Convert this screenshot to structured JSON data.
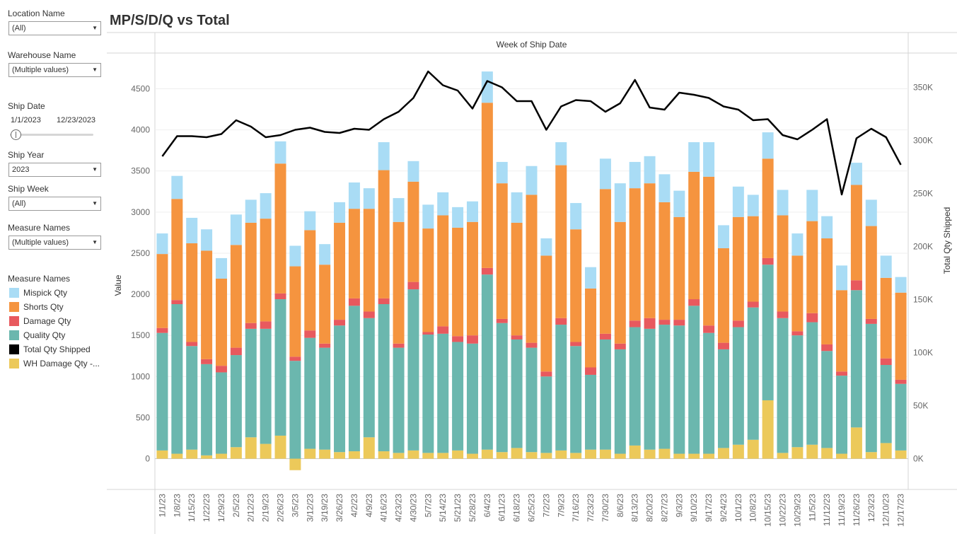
{
  "filters": {
    "location": {
      "label": "Location Name",
      "value": "(All)"
    },
    "warehouse": {
      "label": "Warehouse Name",
      "value": "(Multiple values)"
    },
    "ship_date": {
      "label": "Ship Date",
      "start": "1/1/2023",
      "end": "12/23/2023"
    },
    "ship_year": {
      "label": "Ship Year",
      "value": "2023"
    },
    "ship_week": {
      "label": "Ship Week",
      "value": "(All)"
    },
    "measure_names": {
      "label": "Measure Names",
      "value": "(Multiple values)"
    }
  },
  "legend": {
    "title": "Measure Names",
    "items": [
      {
        "label": "Mispick Qty",
        "color": "#a9dcf5"
      },
      {
        "label": "Shorts Qty",
        "color": "#f5943f"
      },
      {
        "label": "Damage Qty",
        "color": "#e8595e"
      },
      {
        "label": "Quality Qty",
        "color": "#6bb7ae"
      },
      {
        "label": "Total Qty Shipped",
        "color": "#000000"
      },
      {
        "label": "WH Damage Qty -...",
        "color": "#ecc95a"
      }
    ]
  },
  "chart_title": "MP/S/D/Q vs Total",
  "chart_data": {
    "type": "bar",
    "subtype": "stacked bar with line on secondary axis",
    "title": "MP/S/D/Q vs Total",
    "column_header": "Week of Ship Date",
    "ylabel": "Value",
    "y2label": "Total Qty Shipped",
    "ylim": [
      -150,
      4850
    ],
    "y2lim": [
      -30000,
      370000
    ],
    "yticks": [
      0,
      500,
      1000,
      1500,
      2000,
      2500,
      3000,
      3500,
      4000,
      4500
    ],
    "y2ticks": [
      "0K",
      "50K",
      "100K",
      "150K",
      "200K",
      "250K",
      "300K",
      "350K"
    ],
    "y2tick_values": [
      0,
      50000,
      100000,
      150000,
      200000,
      250000,
      300000,
      350000
    ],
    "grid": true,
    "categories": [
      "1/1/23",
      "1/8/23",
      "1/15/23",
      "1/22/23",
      "1/29/23",
      "2/5/23",
      "2/12/23",
      "2/19/23",
      "2/26/23",
      "3/5/23",
      "3/12/23",
      "3/19/23",
      "3/26/23",
      "4/2/23",
      "4/9/23",
      "4/16/23",
      "4/23/23",
      "4/30/23",
      "5/7/23",
      "5/14/23",
      "5/21/23",
      "5/28/23",
      "6/4/23",
      "6/11/23",
      "6/18/23",
      "6/25/23",
      "7/2/23",
      "7/9/23",
      "7/16/23",
      "7/23/23",
      "7/30/23",
      "8/6/23",
      "8/13/23",
      "8/20/23",
      "8/27/23",
      "9/3/23",
      "9/10/23",
      "9/17/23",
      "9/24/23",
      "10/1/23",
      "10/8/23",
      "10/15/23",
      "10/22/23",
      "10/29/23",
      "11/5/23",
      "11/12/23",
      "11/19/23",
      "11/26/23",
      "12/3/23",
      "12/10/23",
      "12/17/23"
    ],
    "series": [
      {
        "name": "WH Damage Qty -...",
        "color": "#ecc95a",
        "values": [
          100,
          60,
          110,
          40,
          60,
          140,
          260,
          180,
          280,
          -140,
          120,
          110,
          80,
          90,
          260,
          90,
          70,
          100,
          70,
          70,
          100,
          60,
          110,
          80,
          130,
          80,
          70,
          100,
          70,
          110,
          110,
          60,
          160,
          110,
          120,
          60,
          60,
          60,
          130,
          170,
          230,
          710,
          70,
          140,
          170,
          130,
          60,
          380,
          80,
          190,
          100
        ]
      },
      {
        "name": "Quality Qty",
        "color": "#6bb7ae",
        "values": [
          1430,
          1820,
          1260,
          1110,
          990,
          1120,
          1320,
          1400,
          1660,
          1190,
          1350,
          1240,
          1540,
          1770,
          1450,
          1790,
          1280,
          1960,
          1440,
          1450,
          1320,
          1340,
          2130,
          1570,
          1320,
          1270,
          930,
          1530,
          1300,
          910,
          1340,
          1270,
          1440,
          1470,
          1510,
          1560,
          1800,
          1470,
          1200,
          1430,
          1610,
          1650,
          1640,
          1360,
          1490,
          1180,
          950,
          1670,
          1560,
          950,
          810
        ]
      },
      {
        "name": "Damage Qty",
        "color": "#e8595e",
        "values": [
          60,
          50,
          50,
          60,
          80,
          90,
          70,
          90,
          70,
          50,
          90,
          50,
          70,
          90,
          80,
          70,
          50,
          90,
          30,
          90,
          70,
          100,
          80,
          50,
          50,
          60,
          60,
          80,
          50,
          90,
          70,
          70,
          80,
          130,
          60,
          70,
          80,
          90,
          80,
          80,
          70,
          80,
          80,
          50,
          110,
          80,
          50,
          120,
          60,
          80,
          50
        ]
      },
      {
        "name": "Shorts Qty",
        "color": "#f5943f",
        "values": [
          900,
          1230,
          1200,
          1320,
          1060,
          1250,
          1220,
          1250,
          1580,
          1100,
          1220,
          960,
          1180,
          1090,
          1250,
          1560,
          1480,
          1220,
          1260,
          1350,
          1320,
          1380,
          2010,
          1650,
          1370,
          1800,
          1410,
          1860,
          1370,
          960,
          1760,
          1480,
          1610,
          1640,
          1430,
          1250,
          1550,
          1810,
          1150,
          1260,
          1040,
          1210,
          1170,
          920,
          1120,
          1290,
          990,
          1160,
          1130,
          980,
          1060
        ]
      },
      {
        "name": "Mispick Qty",
        "color": "#a9dcf5",
        "values": [
          250,
          280,
          310,
          260,
          250,
          370,
          280,
          310,
          270,
          250,
          230,
          250,
          250,
          320,
          250,
          340,
          290,
          250,
          290,
          280,
          250,
          250,
          380,
          260,
          370,
          350,
          210,
          280,
          320,
          260,
          370,
          470,
          320,
          330,
          340,
          320,
          360,
          420,
          280,
          370,
          260,
          320,
          310,
          270,
          380,
          270,
          300,
          270,
          320,
          270,
          190
        ]
      }
    ],
    "line_series": {
      "name": "Total Qty Shipped",
      "color": "#000000",
      "axis": "right",
      "values": [
        285000,
        304000,
        304000,
        303000,
        306000,
        319000,
        313000,
        303000,
        305000,
        310000,
        312000,
        308000,
        307000,
        311000,
        310000,
        320000,
        327000,
        340000,
        365000,
        352000,
        347000,
        330000,
        356000,
        350000,
        337000,
        337000,
        310000,
        332000,
        338000,
        337000,
        327000,
        335000,
        357000,
        331000,
        329000,
        345000,
        343000,
        340000,
        332000,
        329000,
        319000,
        320000,
        305000,
        301000,
        310000,
        320000,
        249000,
        302000,
        311000,
        303000,
        277000
      ]
    }
  }
}
